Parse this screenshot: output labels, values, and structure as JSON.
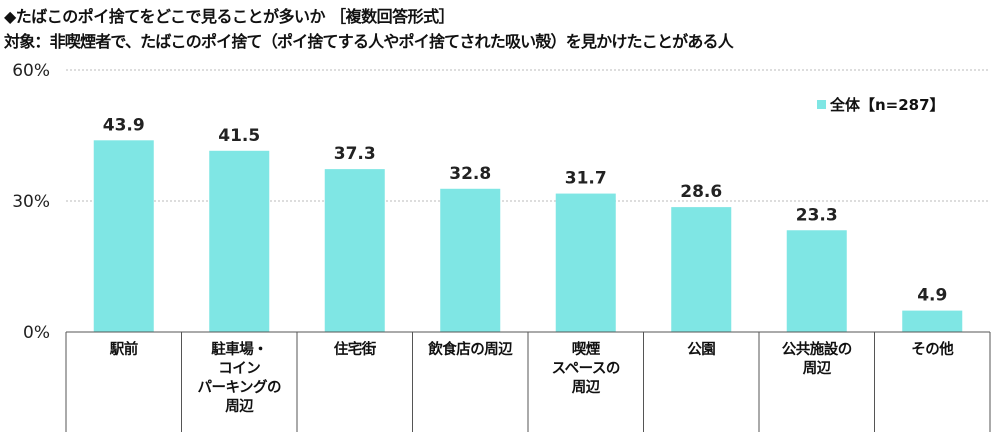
{
  "title": "◆たばこのポイ捨てをどこで見ることが多いか ［複数回答形式］",
  "subtitle": "対象：非喫煙者で、たばこのポイ捨て（ポイ捨てする人やポイ捨てされた吸い殻）を見かけたことがある人",
  "colors": {
    "bar": "#7fe6e4",
    "axis": "#555555",
    "grid": "#bbbbbb"
  },
  "chart_data": {
    "type": "bar",
    "categories": [
      "駅前",
      "駐車場・\nコイン\nパーキングの\n周辺",
      "住宅街",
      "飲食店の周辺",
      "喫煙\nスペースの\n周辺",
      "公園",
      "公共施設の\n周辺",
      "その他"
    ],
    "series": [
      {
        "name": "全体【n=287】",
        "values": [
          43.9,
          41.5,
          37.3,
          32.8,
          31.7,
          28.6,
          23.3,
          4.9
        ]
      }
    ],
    "value_labels": [
      "43.9",
      "41.5",
      "37.3",
      "32.8",
      "31.7",
      "28.6",
      "23.3",
      "4.9"
    ],
    "yticks": [
      0,
      30,
      60
    ],
    "ytick_labels": [
      "0%",
      "30%",
      "60%"
    ],
    "ylim": [
      0,
      60
    ],
    "grid": true,
    "legend_position": "top-right"
  }
}
